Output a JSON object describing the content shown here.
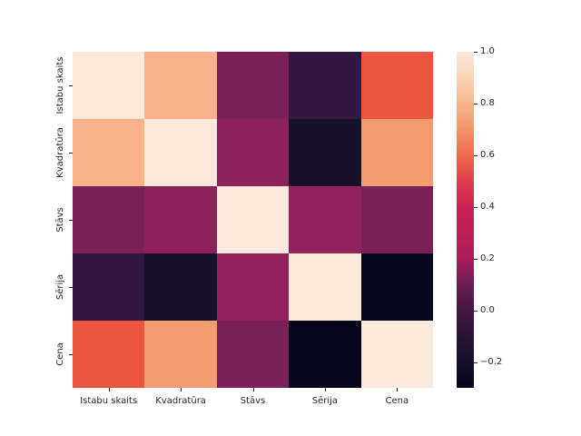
{
  "figure": {
    "background": "#ffffff",
    "title": ""
  },
  "chart_data": {
    "type": "heatmap",
    "title": "",
    "xlabel": "",
    "ylabel": "",
    "colormap": "rocket",
    "x_categories": [
      "Istabu skaits",
      "Kvadratūra",
      "Stāvs",
      "Sērija",
      "Cena"
    ],
    "y_categories": [
      "Istabu skaits",
      "Kvadratūra",
      "Stāvs",
      "Sērija",
      "Cena"
    ],
    "matrix": [
      [
        1.0,
        0.79,
        0.11,
        -0.06,
        0.54
      ],
      [
        0.79,
        1.0,
        0.16,
        -0.21,
        0.71
      ],
      [
        0.11,
        0.16,
        1.0,
        0.17,
        0.12
      ],
      [
        -0.06,
        -0.21,
        0.17,
        1.0,
        -0.29
      ],
      [
        0.54,
        0.71,
        0.12,
        -0.29,
        1.0
      ]
    ],
    "cell_colors": [
      [
        "#fbeadc",
        "#f7b289",
        "#7b2158",
        "#321740",
        "#ec5540"
      ],
      [
        "#f7b289",
        "#fbeadc",
        "#8d215a",
        "#171029",
        "#f49c70"
      ],
      [
        "#7b2158",
        "#8d215a",
        "#fbeadc",
        "#92215c",
        "#7c2158"
      ],
      [
        "#321740",
        "#171029",
        "#92215c",
        "#fbeadc",
        "#05051c"
      ],
      [
        "#ec5540",
        "#f49c70",
        "#7c2158",
        "#05051c",
        "#fbeadc"
      ]
    ],
    "colorbar": {
      "vmin": -0.3,
      "vmax": 1.0,
      "tick_labels": [
        "1.0",
        "0.8",
        "0.6",
        "0.4",
        "0.2",
        "0.0",
        "−0.2"
      ],
      "tick_values": [
        1.0,
        0.8,
        0.6,
        0.4,
        0.2,
        0.0,
        -0.2
      ],
      "gradient_stops": [
        {
          "value": -0.3,
          "color": "#03051b"
        },
        {
          "value": -0.2,
          "color": "#16102a"
        },
        {
          "value": -0.1,
          "color": "#2a1435"
        },
        {
          "value": 0.0,
          "color": "#43173f"
        },
        {
          "value": 0.1,
          "color": "#6d1d52"
        },
        {
          "value": 0.2,
          "color": "#a81d5b"
        },
        {
          "value": 0.3,
          "color": "#bd2057"
        },
        {
          "value": 0.4,
          "color": "#cd2154"
        },
        {
          "value": 0.5,
          "color": "#e03e4c"
        },
        {
          "value": 0.6,
          "color": "#ee6a4d"
        },
        {
          "value": 0.7,
          "color": "#f3946b"
        },
        {
          "value": 0.8,
          "color": "#f5b68d"
        },
        {
          "value": 0.9,
          "color": "#f8d3b4"
        },
        {
          "value": 1.0,
          "color": "#fbeadc"
        }
      ]
    }
  }
}
